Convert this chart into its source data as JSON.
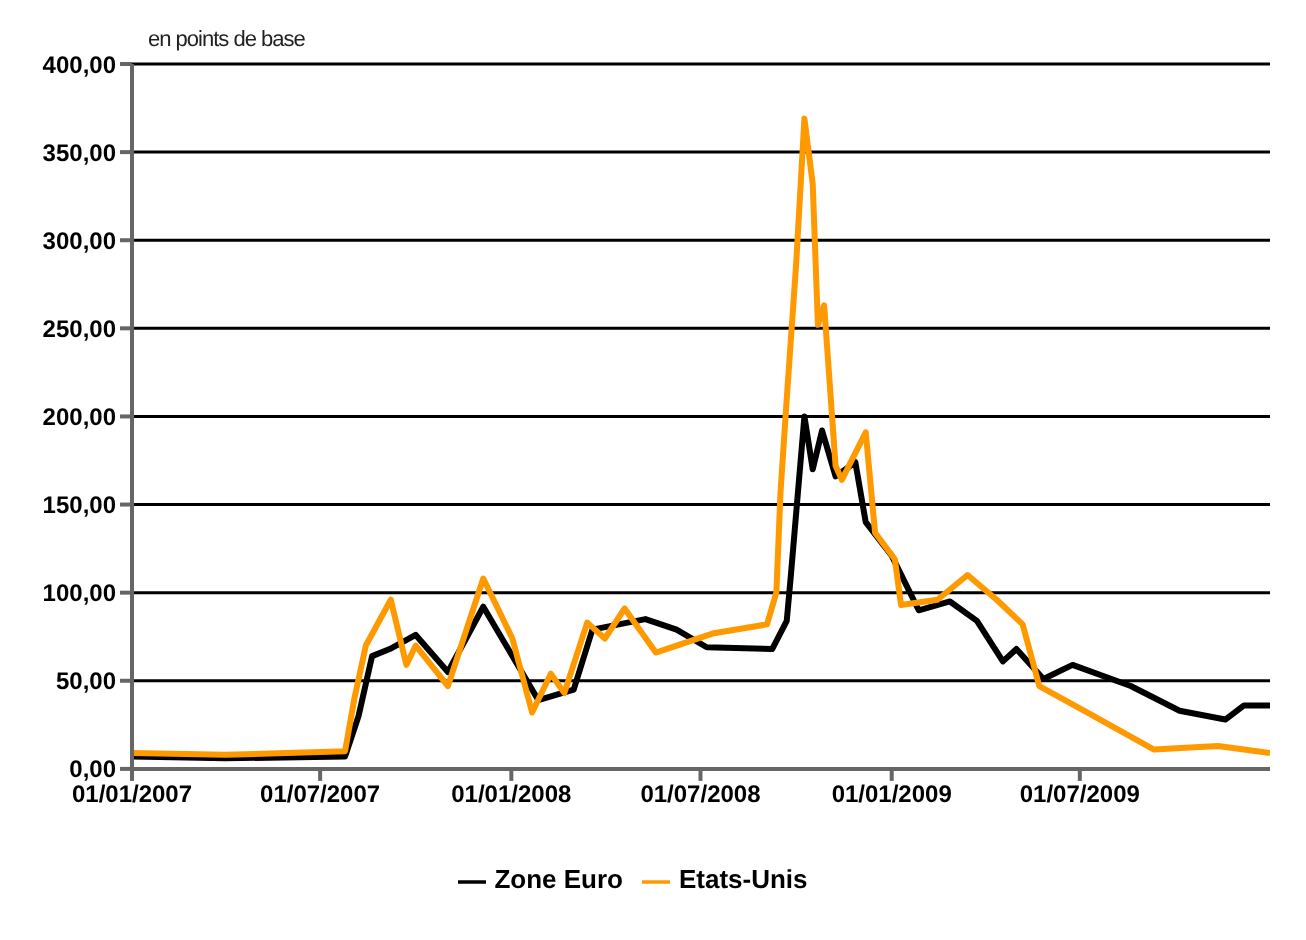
{
  "chart_data": {
    "type": "line",
    "ylabel": "en points de base",
    "xlim": [
      "2007-01-01",
      "2009-12-31"
    ],
    "xticks": [
      {
        "value": "2007-01-01",
        "label": "01/01/2007"
      },
      {
        "value": "2007-07-01",
        "label": "01/07/2007"
      },
      {
        "value": "2008-01-01",
        "label": "01/01/2008"
      },
      {
        "value": "2008-07-01",
        "label": "01/07/2008"
      },
      {
        "value": "2009-01-01",
        "label": "01/01/2009"
      },
      {
        "value": "2009-07-01",
        "label": "01/07/2009"
      }
    ],
    "ylim": [
      0,
      400
    ],
    "yticks": [
      {
        "value": 0,
        "label": "0,00"
      },
      {
        "value": 50,
        "label": "50,00"
      },
      {
        "value": 100,
        "label": "100,00"
      },
      {
        "value": 150,
        "label": "150,00"
      },
      {
        "value": 200,
        "label": "200,00"
      },
      {
        "value": 250,
        "label": "250,00"
      },
      {
        "value": 300,
        "label": "300,00"
      },
      {
        "value": 350,
        "label": "350,00"
      },
      {
        "value": 400,
        "label": "400,00"
      }
    ],
    "grid": "y",
    "legend": "bottom",
    "marker": "none",
    "line_style": "solid",
    "series": [
      {
        "name": "Zone Euro",
        "color": "#000000",
        "x": [
          "2007-01-01",
          "2007-04-01",
          "2007-07-25",
          "2007-08-07",
          "2007-08-20",
          "2007-09-06",
          "2007-10-01",
          "2007-11-01",
          "2007-12-05",
          "2008-01-02",
          "2008-01-27",
          "2008-03-01",
          "2008-03-19",
          "2008-05-09",
          "2008-06-08",
          "2008-07-07",
          "2008-09-08",
          "2008-09-22",
          "2008-09-26",
          "2008-10-09",
          "2008-10-17",
          "2008-10-26",
          "2008-11-08",
          "2008-11-27",
          "2008-12-07",
          "2009-01-01",
          "2009-01-27",
          "2009-02-26",
          "2009-03-24",
          "2009-04-18",
          "2009-05-01",
          "2009-05-27",
          "2009-06-24",
          "2009-08-19",
          "2009-10-05",
          "2009-11-18",
          "2009-12-06",
          "2009-12-31"
        ],
        "values": [
          7,
          6,
          7,
          30,
          64,
          68,
          76,
          55,
          92,
          64,
          39,
          45,
          79,
          85,
          79,
          69,
          68,
          84,
          110,
          200,
          170,
          192,
          166,
          174,
          140,
          121,
          90,
          95,
          84,
          61,
          68,
          51,
          59,
          47,
          33,
          28,
          36,
          36
        ]
      },
      {
        "name": "Etats-Unis",
        "color": "#ff9900",
        "x": [
          "2007-01-01",
          "2007-04-01",
          "2007-07-25",
          "2007-08-03",
          "2007-08-14",
          "2007-09-07",
          "2007-09-22",
          "2007-10-01",
          "2007-11-01",
          "2007-12-05",
          "2008-01-02",
          "2008-01-21",
          "2008-02-08",
          "2008-02-21",
          "2008-03-14",
          "2008-03-31",
          "2008-04-19",
          "2008-05-19",
          "2008-07-14",
          "2008-09-03",
          "2008-09-12",
          "2008-09-16",
          "2008-09-22",
          "2008-10-01",
          "2008-10-09",
          "2008-10-17",
          "2008-10-22",
          "2008-10-28",
          "2008-11-08",
          "2008-11-14",
          "2008-12-07",
          "2008-12-16",
          "2009-01-04",
          "2009-01-10",
          "2009-02-14",
          "2009-03-15",
          "2009-04-12",
          "2009-05-07",
          "2009-05-23",
          "2009-07-08",
          "2009-09-10",
          "2009-11-11",
          "2009-12-31"
        ],
        "values": [
          9,
          8,
          10,
          40,
          70,
          96,
          59,
          70,
          47,
          108,
          74,
          32,
          54,
          43,
          83,
          74,
          91,
          66,
          77,
          82,
          100,
          157,
          210,
          286,
          369,
          332,
          252,
          263,
          172,
          164,
          191,
          134,
          119,
          93,
          96,
          110,
          96,
          82,
          47,
          32,
          11,
          13,
          9
        ]
      }
    ]
  }
}
